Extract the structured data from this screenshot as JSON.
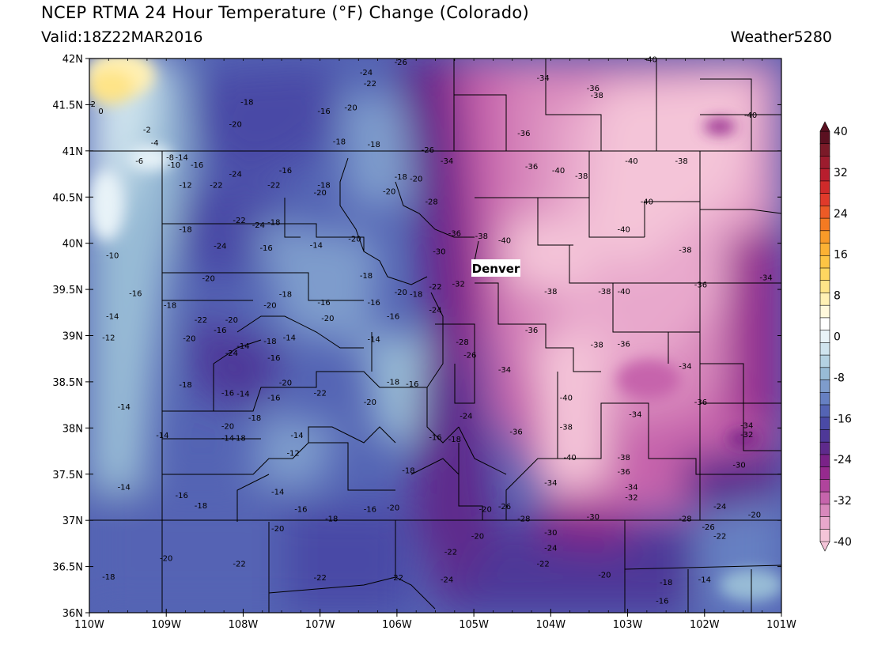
{
  "title": "NCEP RTMA 24 Hour Temperature (°F) Change (Colorado)",
  "valid": "Valid:18Z22MAR2016",
  "credit": "Weather5280",
  "city_label": "Denver",
  "lon_ticks": [
    "110W",
    "109W",
    "108W",
    "107W",
    "106W",
    "105W",
    "104W",
    "103W",
    "102W",
    "101W"
  ],
  "lat_ticks": [
    "36N",
    "36.5N",
    "37N",
    "37.5N",
    "38N",
    "38.5N",
    "39N",
    "39.5N",
    "40N",
    "40.5N",
    "41N",
    "41.5N",
    "42N"
  ],
  "colorbar": {
    "labels": [
      "40",
      "32",
      "24",
      "16",
      "8",
      "0",
      "-8",
      "-16",
      "-24",
      "-32",
      "-40"
    ],
    "bins": [
      {
        "color": "#5a1020"
      },
      {
        "color": "#7a1a28"
      },
      {
        "color": "#9c1c2e"
      },
      {
        "color": "#b81e2e"
      },
      {
        "color": "#cf2a2a"
      },
      {
        "color": "#e03a2a"
      },
      {
        "color": "#ec5a26"
      },
      {
        "color": "#f47a22"
      },
      {
        "color": "#f89a28"
      },
      {
        "color": "#fbb234"
      },
      {
        "color": "#fdc544"
      },
      {
        "color": "#fed660"
      },
      {
        "color": "#fee488"
      },
      {
        "color": "#fff0b4"
      },
      {
        "color": "#fff8dc"
      },
      {
        "color": "#ffffff"
      },
      {
        "color": "#e8f3f8"
      },
      {
        "color": "#cfe4ee"
      },
      {
        "color": "#b4d2e2"
      },
      {
        "color": "#98bcd6"
      },
      {
        "color": "#7e9ccc"
      },
      {
        "color": "#6680c2"
      },
      {
        "color": "#5464b4"
      },
      {
        "color": "#4a4aa6"
      },
      {
        "color": "#4e3898"
      },
      {
        "color": "#5e2a8c"
      },
      {
        "color": "#7a2288"
      },
      {
        "color": "#962a8e"
      },
      {
        "color": "#b0449c"
      },
      {
        "color": "#c664ac"
      },
      {
        "color": "#d888bc"
      },
      {
        "color": "#e8a8cc"
      },
      {
        "color": "#f4c4d8"
      }
    ]
  },
  "contour_labels": [
    {
      "text": "-26",
      "lon": -105.95,
      "lat": 41.93
    },
    {
      "text": "-24",
      "lon": -106.4,
      "lat": 41.82
    },
    {
      "text": "-22",
      "lon": -106.35,
      "lat": 41.7
    },
    {
      "text": "-40",
      "lon": -102.7,
      "lat": 41.96
    },
    {
      "text": "-34",
      "lon": -104.1,
      "lat": 41.76
    },
    {
      "text": "-36",
      "lon": -103.45,
      "lat": 41.65
    },
    {
      "text": "-38",
      "lon": -103.4,
      "lat": 41.57
    },
    {
      "text": "2",
      "lon": -109.95,
      "lat": 41.48
    },
    {
      "text": "0",
      "lon": -109.85,
      "lat": 41.4
    },
    {
      "text": "-18",
      "lon": -107.95,
      "lat": 41.5
    },
    {
      "text": "-20",
      "lon": -106.6,
      "lat": 41.44
    },
    {
      "text": "-16",
      "lon": -106.95,
      "lat": 41.4
    },
    {
      "text": "-20",
      "lon": -108.1,
      "lat": 41.26
    },
    {
      "text": "-2",
      "lon": -109.25,
      "lat": 41.2
    },
    {
      "text": "-4",
      "lon": -109.15,
      "lat": 41.06
    },
    {
      "text": "-18",
      "lon": -106.75,
      "lat": 41.07
    },
    {
      "text": "-18",
      "lon": -106.3,
      "lat": 41.04
    },
    {
      "text": "-36",
      "lon": -104.35,
      "lat": 41.16
    },
    {
      "text": "-40",
      "lon": -101.4,
      "lat": 41.36
    },
    {
      "text": "-26",
      "lon": -105.6,
      "lat": 40.98
    },
    {
      "text": "-8",
      "lon": -108.95,
      "lat": 40.9
    },
    {
      "text": "-14",
      "lon": -108.8,
      "lat": 40.9
    },
    {
      "text": "-6",
      "lon": -109.35,
      "lat": 40.86
    },
    {
      "text": "-10",
      "lon": -108.9,
      "lat": 40.82
    },
    {
      "text": "-16",
      "lon": -108.6,
      "lat": 40.82
    },
    {
      "text": "-34",
      "lon": -105.35,
      "lat": 40.86
    },
    {
      "text": "-36",
      "lon": -104.25,
      "lat": 40.8
    },
    {
      "text": "-40",
      "lon": -103.9,
      "lat": 40.76
    },
    {
      "text": "-38",
      "lon": -103.6,
      "lat": 40.7
    },
    {
      "text": "-40",
      "lon": -102.95,
      "lat": 40.86
    },
    {
      "text": "-38",
      "lon": -102.3,
      "lat": 40.86
    },
    {
      "text": "-24",
      "lon": -108.1,
      "lat": 40.72
    },
    {
      "text": "-16",
      "lon": -107.45,
      "lat": 40.76
    },
    {
      "text": "-18",
      "lon": -106.95,
      "lat": 40.6
    },
    {
      "text": "-20",
      "lon": -107.0,
      "lat": 40.52
    },
    {
      "text": "-18",
      "lon": -105.95,
      "lat": 40.69
    },
    {
      "text": "-20",
      "lon": -105.75,
      "lat": 40.67
    },
    {
      "text": "-20",
      "lon": -106.1,
      "lat": 40.53
    },
    {
      "text": "-12",
      "lon": -108.75,
      "lat": 40.6
    },
    {
      "text": "-22",
      "lon": -108.35,
      "lat": 40.6
    },
    {
      "text": "-22",
      "lon": -107.6,
      "lat": 40.6
    },
    {
      "text": "-28",
      "lon": -105.55,
      "lat": 40.42
    },
    {
      "text": "-40",
      "lon": -102.75,
      "lat": 40.42
    },
    {
      "text": "-22",
      "lon": -108.05,
      "lat": 40.22
    },
    {
      "text": "-24",
      "lon": -107.8,
      "lat": 40.17
    },
    {
      "text": "-18",
      "lon": -107.6,
      "lat": 40.2
    },
    {
      "text": "-18",
      "lon": -108.75,
      "lat": 40.12
    },
    {
      "text": "-40",
      "lon": -103.05,
      "lat": 40.12
    },
    {
      "text": "-36",
      "lon": -105.25,
      "lat": 40.08
    },
    {
      "text": "-38",
      "lon": -104.9,
      "lat": 40.05
    },
    {
      "text": "-40",
      "lon": -104.6,
      "lat": 40.0
    },
    {
      "text": "-20",
      "lon": -106.55,
      "lat": 40.02
    },
    {
      "text": "-24",
      "lon": -108.3,
      "lat": 39.94
    },
    {
      "text": "-16",
      "lon": -107.7,
      "lat": 39.92
    },
    {
      "text": "-14",
      "lon": -107.05,
      "lat": 39.95
    },
    {
      "text": "-10",
      "lon": -109.7,
      "lat": 39.84
    },
    {
      "text": "-30",
      "lon": -105.45,
      "lat": 39.88
    },
    {
      "text": "-38",
      "lon": -102.25,
      "lat": 39.9
    },
    {
      "text": "-34",
      "lon": -101.2,
      "lat": 39.6
    },
    {
      "text": "-18",
      "lon": -106.4,
      "lat": 39.62
    },
    {
      "text": "-20",
      "lon": -108.45,
      "lat": 39.59
    },
    {
      "text": "-32",
      "lon": -105.2,
      "lat": 39.53
    },
    {
      "text": "-22",
      "lon": -105.5,
      "lat": 39.5
    },
    {
      "text": "-20",
      "lon": -105.95,
      "lat": 39.44
    },
    {
      "text": "-18",
      "lon": -105.75,
      "lat": 39.42
    },
    {
      "text": "-36",
      "lon": -102.05,
      "lat": 39.52
    },
    {
      "text": "-38",
      "lon": -103.3,
      "lat": 39.45
    },
    {
      "text": "-38",
      "lon": -104.0,
      "lat": 39.45
    },
    {
      "text": "-40",
      "lon": -103.05,
      "lat": 39.45
    },
    {
      "text": "-16",
      "lon": -109.4,
      "lat": 39.43
    },
    {
      "text": "-18",
      "lon": -107.45,
      "lat": 39.42
    },
    {
      "text": "-16",
      "lon": -106.95,
      "lat": 39.33
    },
    {
      "text": "-16",
      "lon": -106.3,
      "lat": 39.33
    },
    {
      "text": "-20",
      "lon": -107.65,
      "lat": 39.3
    },
    {
      "text": "-18",
      "lon": -108.95,
      "lat": 39.3
    },
    {
      "text": "-24",
      "lon": -105.5,
      "lat": 39.25
    },
    {
      "text": "-14",
      "lon": -109.7,
      "lat": 39.18
    },
    {
      "text": "-22",
      "lon": -108.55,
      "lat": 39.14
    },
    {
      "text": "-20",
      "lon": -108.15,
      "lat": 39.14
    },
    {
      "text": "-20",
      "lon": -106.9,
      "lat": 39.16
    },
    {
      "text": "-16",
      "lon": -106.05,
      "lat": 39.18
    },
    {
      "text": "-16",
      "lon": -108.3,
      "lat": 39.03
    },
    {
      "text": "-12",
      "lon": -109.75,
      "lat": 38.95
    },
    {
      "text": "-20",
      "lon": -108.7,
      "lat": 38.94
    },
    {
      "text": "-14",
      "lon": -107.4,
      "lat": 38.95
    },
    {
      "text": "-14",
      "lon": -106.3,
      "lat": 38.93
    },
    {
      "text": "-18",
      "lon": -107.65,
      "lat": 38.91
    },
    {
      "text": "-36",
      "lon": -104.25,
      "lat": 39.03
    },
    {
      "text": "-28",
      "lon": -105.15,
      "lat": 38.9
    },
    {
      "text": "-26",
      "lon": -105.05,
      "lat": 38.76
    },
    {
      "text": "-38",
      "lon": -103.4,
      "lat": 38.87
    },
    {
      "text": "-36",
      "lon": -103.05,
      "lat": 38.88
    },
    {
      "text": "-14",
      "lon": -108.0,
      "lat": 38.86
    },
    {
      "text": "-24",
      "lon": -108.15,
      "lat": 38.78
    },
    {
      "text": "-16",
      "lon": -107.6,
      "lat": 38.73
    },
    {
      "text": "-34",
      "lon": -104.6,
      "lat": 38.6
    },
    {
      "text": "-34",
      "lon": -102.25,
      "lat": 38.64
    },
    {
      "text": "-18",
      "lon": -108.75,
      "lat": 38.44
    },
    {
      "text": "-20",
      "lon": -107.45,
      "lat": 38.46
    },
    {
      "text": "-18",
      "lon": -106.05,
      "lat": 38.47
    },
    {
      "text": "-16",
      "lon": -105.8,
      "lat": 38.45
    },
    {
      "text": "-16",
      "lon": -108.2,
      "lat": 38.35
    },
    {
      "text": "-14",
      "lon": -108.0,
      "lat": 38.34
    },
    {
      "text": "-16",
      "lon": -107.6,
      "lat": 38.3
    },
    {
      "text": "-22",
      "lon": -107.0,
      "lat": 38.35
    },
    {
      "text": "-40",
      "lon": -103.8,
      "lat": 38.3
    },
    {
      "text": "-36",
      "lon": -102.05,
      "lat": 38.25
    },
    {
      "text": "-20",
      "lon": -106.35,
      "lat": 38.25
    },
    {
      "text": "-14",
      "lon": -109.55,
      "lat": 38.2
    },
    {
      "text": "-18",
      "lon": -107.85,
      "lat": 38.08
    },
    {
      "text": "-24",
      "lon": -105.1,
      "lat": 38.1
    },
    {
      "text": "-34",
      "lon": -102.9,
      "lat": 38.12
    },
    {
      "text": "-34",
      "lon": -101.45,
      "lat": 38.0
    },
    {
      "text": "-20",
      "lon": -108.2,
      "lat": 37.99
    },
    {
      "text": "-38",
      "lon": -103.8,
      "lat": 37.98
    },
    {
      "text": "-36",
      "lon": -104.45,
      "lat": 37.93
    },
    {
      "text": "-32",
      "lon": -101.45,
      "lat": 37.9
    },
    {
      "text": "-14",
      "lon": -109.05,
      "lat": 37.89
    },
    {
      "text": "-14",
      "lon": -108.2,
      "lat": 37.86
    },
    {
      "text": "-18",
      "lon": -108.05,
      "lat": 37.86
    },
    {
      "text": "-14",
      "lon": -107.3,
      "lat": 37.89
    },
    {
      "text": "-16",
      "lon": -105.5,
      "lat": 37.87
    },
    {
      "text": "-18",
      "lon": -105.25,
      "lat": 37.85
    },
    {
      "text": "-12",
      "lon": -107.35,
      "lat": 37.7
    },
    {
      "text": "-40",
      "lon": -103.75,
      "lat": 37.65
    },
    {
      "text": "-38",
      "lon": -103.05,
      "lat": 37.65
    },
    {
      "text": "-30",
      "lon": -101.55,
      "lat": 37.57
    },
    {
      "text": "-36",
      "lon": -103.05,
      "lat": 37.5
    },
    {
      "text": "-18",
      "lon": -105.85,
      "lat": 37.51
    },
    {
      "text": "-34",
      "lon": -104.0,
      "lat": 37.38
    },
    {
      "text": "-34",
      "lon": -102.95,
      "lat": 37.33
    },
    {
      "text": "-14",
      "lon": -109.55,
      "lat": 37.33
    },
    {
      "text": "-14",
      "lon": -107.55,
      "lat": 37.28
    },
    {
      "text": "-32",
      "lon": -102.95,
      "lat": 37.22
    },
    {
      "text": "-16",
      "lon": -108.8,
      "lat": 37.24
    },
    {
      "text": "-18",
      "lon": -108.55,
      "lat": 37.13
    },
    {
      "text": "-16",
      "lon": -107.25,
      "lat": 37.09
    },
    {
      "text": "-16",
      "lon": -106.35,
      "lat": 37.09
    },
    {
      "text": "-20",
      "lon": -106.05,
      "lat": 37.11
    },
    {
      "text": "-20",
      "lon": -104.85,
      "lat": 37.09
    },
    {
      "text": "-26",
      "lon": -104.6,
      "lat": 37.12
    },
    {
      "text": "-24",
      "lon": -101.8,
      "lat": 37.12
    },
    {
      "text": "-20",
      "lon": -101.35,
      "lat": 37.03
    },
    {
      "text": "-18",
      "lon": -106.85,
      "lat": 36.99
    },
    {
      "text": "-28",
      "lon": -104.35,
      "lat": 36.99
    },
    {
      "text": "-30",
      "lon": -103.45,
      "lat": 37.01
    },
    {
      "text": "-28",
      "lon": -102.25,
      "lat": 36.99
    },
    {
      "text": "-26",
      "lon": -101.95,
      "lat": 36.9
    },
    {
      "text": "-22",
      "lon": -101.8,
      "lat": 36.8
    },
    {
      "text": "-20",
      "lon": -107.55,
      "lat": 36.88
    },
    {
      "text": "-30",
      "lon": -104.0,
      "lat": 36.84
    },
    {
      "text": "-20",
      "lon": -104.95,
      "lat": 36.8
    },
    {
      "text": "-24",
      "lon": -104.0,
      "lat": 36.67
    },
    {
      "text": "-22",
      "lon": -105.3,
      "lat": 36.63
    },
    {
      "text": "-20",
      "lon": -109.0,
      "lat": 36.56
    },
    {
      "text": "-22",
      "lon": -104.1,
      "lat": 36.5
    },
    {
      "text": "-22",
      "lon": -108.05,
      "lat": 36.5
    },
    {
      "text": "-18",
      "lon": -109.75,
      "lat": 36.36
    },
    {
      "text": "-22",
      "lon": -107.0,
      "lat": 36.35
    },
    {
      "text": "-22",
      "lon": -106.0,
      "lat": 36.35
    },
    {
      "text": "-24",
      "lon": -105.35,
      "lat": 36.33
    },
    {
      "text": "-20",
      "lon": -103.3,
      "lat": 36.38
    },
    {
      "text": "-18",
      "lon": -102.5,
      "lat": 36.3
    },
    {
      "text": "-14",
      "lon": -102.0,
      "lat": 36.33
    },
    {
      "text": "-16",
      "lon": -102.55,
      "lat": 36.1
    }
  ]
}
